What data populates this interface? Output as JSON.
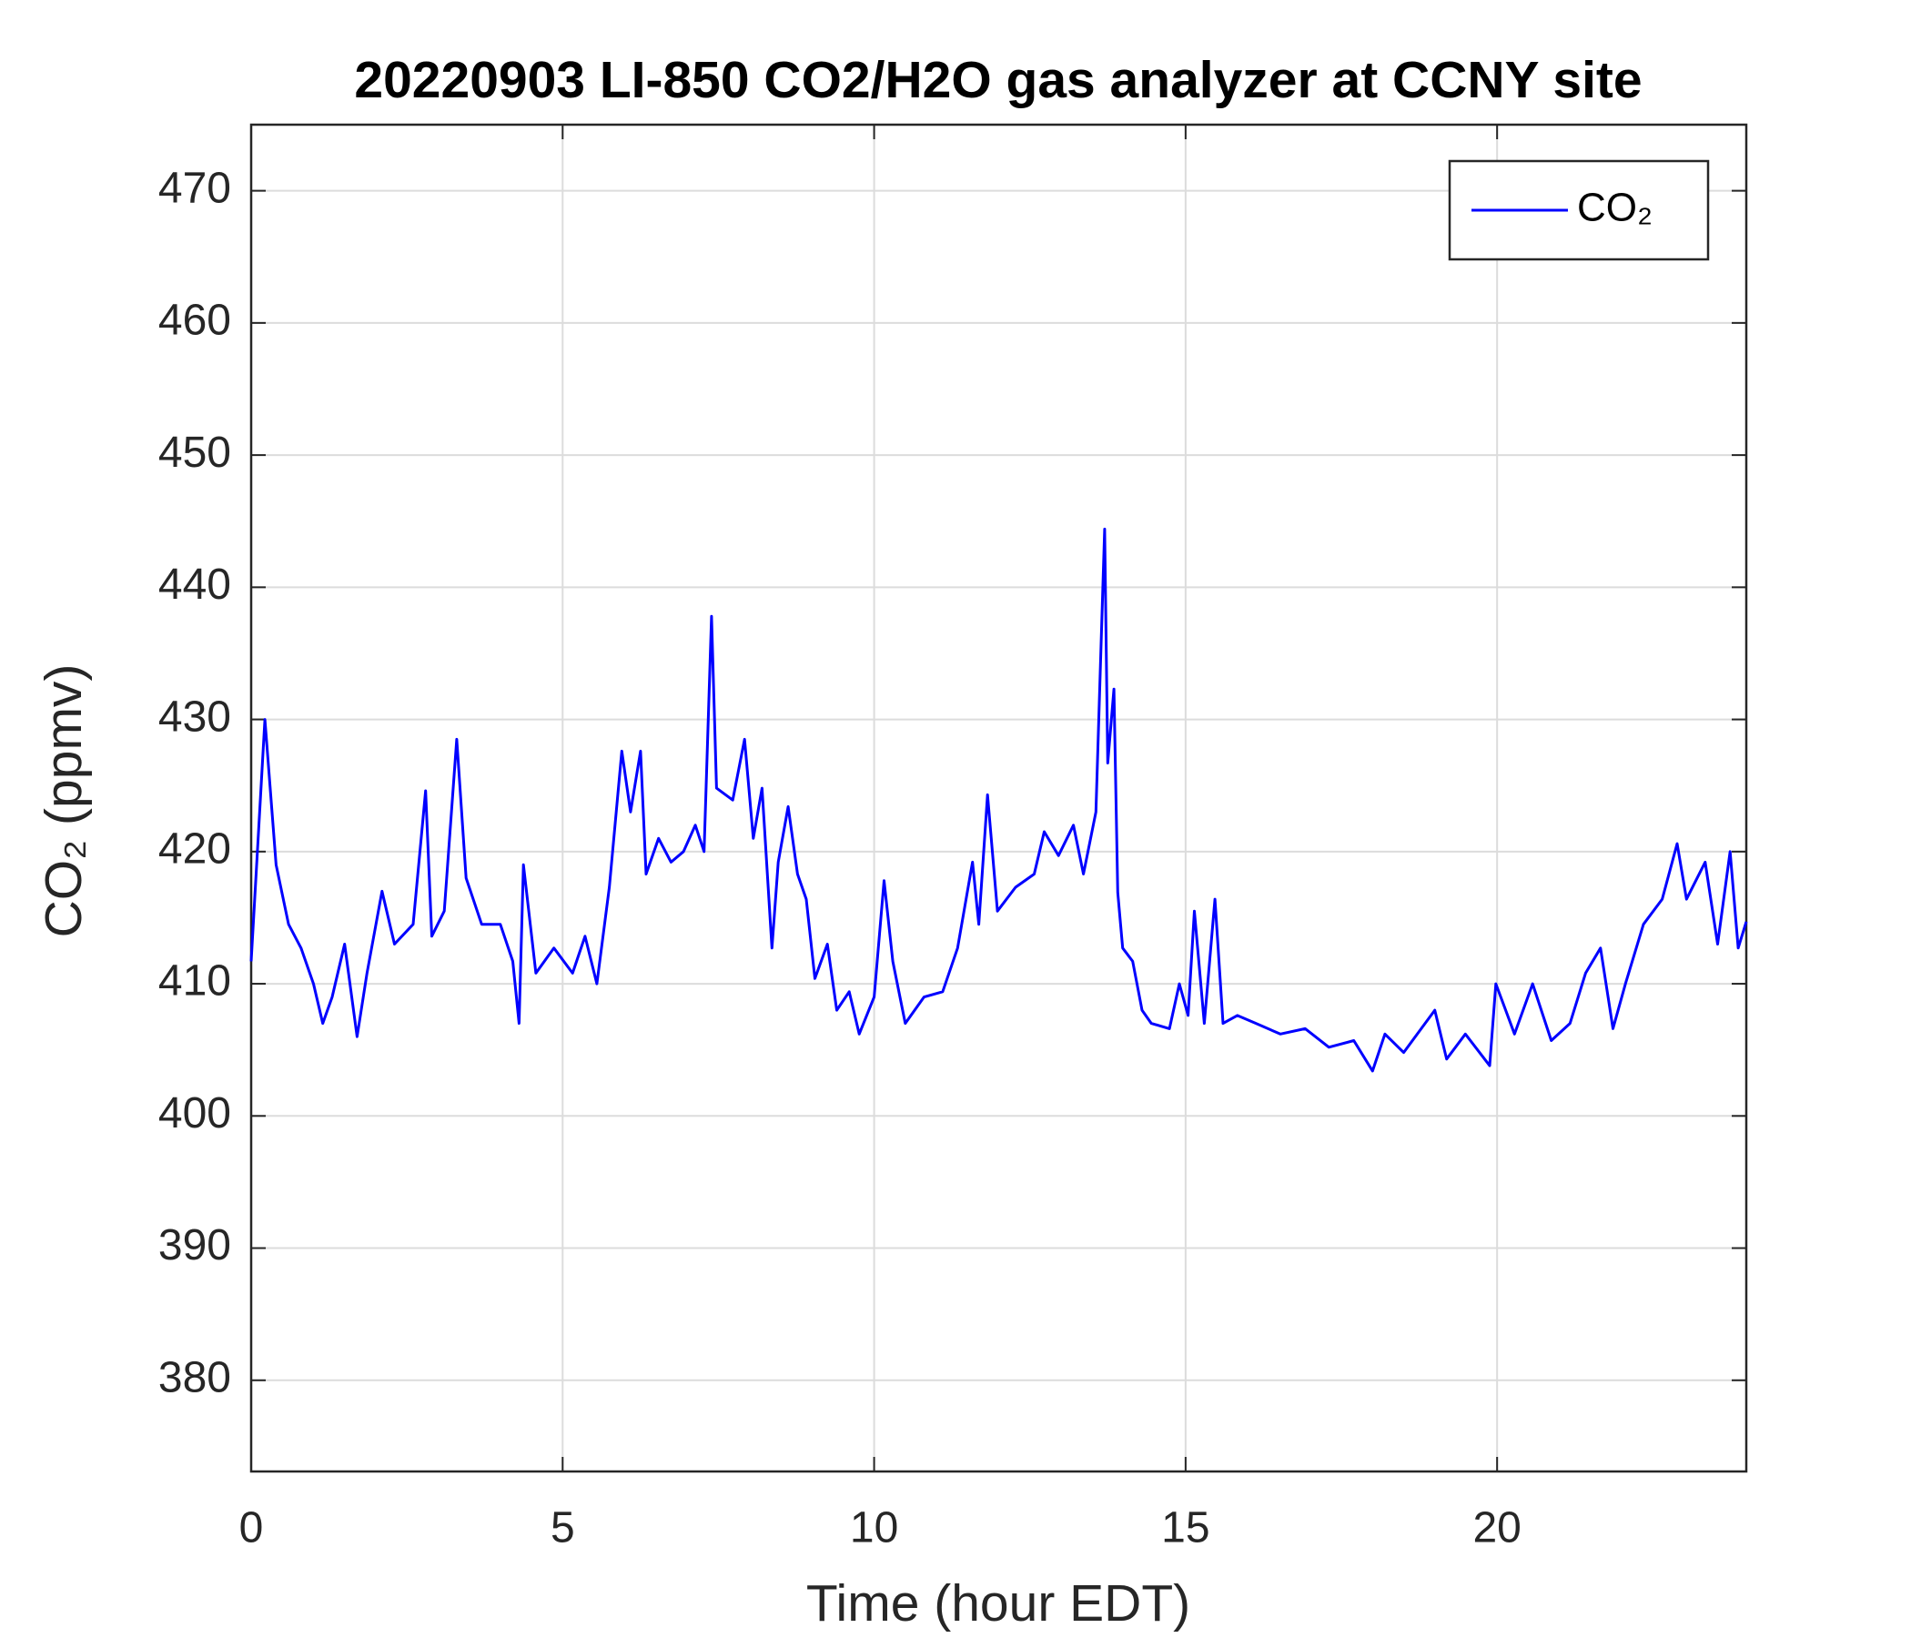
{
  "chart_data": {
    "type": "line",
    "title": "20220903 LI-850 CO2/H2O gas analyzer at CCNY site",
    "xlabel": "Time (hour EDT)",
    "ylabel": "CO₂ (ppmv)",
    "x": [
      0,
      0.22,
      0.4,
      0.6,
      0.8,
      1.0,
      1.15,
      1.3,
      1.5,
      1.7,
      1.86,
      2.1,
      2.3,
      2.6,
      2.8,
      2.9,
      3.1,
      3.3,
      3.45,
      3.7,
      4.0,
      4.2,
      4.3,
      4.37,
      4.57,
      4.86,
      5.16,
      5.36,
      5.55,
      5.75,
      5.95,
      6.09,
      6.25,
      6.34,
      6.54,
      6.74,
      6.94,
      7.13,
      7.27,
      7.39,
      7.47,
      7.73,
      7.92,
      8.06,
      8.2,
      8.36,
      8.46,
      8.62,
      8.77,
      8.91,
      9.05,
      9.25,
      9.4,
      9.6,
      9.76,
      10.0,
      10.16,
      10.3,
      10.5,
      10.8,
      11.1,
      11.34,
      11.58,
      11.68,
      11.82,
      11.98,
      12.27,
      12.57,
      12.73,
      12.96,
      13.2,
      13.36,
      13.56,
      13.7,
      13.75,
      13.85,
      13.91,
      13.99,
      14.15,
      14.3,
      14.45,
      14.74,
      14.9,
      15.04,
      15.14,
      15.3,
      15.47,
      15.6,
      15.83,
      16.13,
      16.52,
      16.92,
      17.3,
      17.7,
      18.0,
      18.2,
      18.5,
      19.0,
      19.19,
      19.49,
      19.88,
      19.98,
      20.28,
      20.57,
      20.87,
      21.17,
      21.42,
      21.66,
      21.86,
      22.06,
      22.35,
      22.65,
      22.89,
      23.04,
      23.34,
      23.54,
      23.74,
      23.87,
      24.0
    ],
    "series": [
      {
        "name": "CO₂",
        "color": "#0000ff",
        "values": [
          411.7,
          430,
          419,
          414.5,
          412.7,
          410,
          407,
          409,
          413,
          406,
          410.8,
          417,
          413,
          414.5,
          424.6,
          413.6,
          415.5,
          428.5,
          418,
          414.5,
          414.5,
          411.7,
          407,
          419,
          410.8,
          412.7,
          410.8,
          413.6,
          410,
          417.3,
          427.6,
          423,
          427.6,
          418.3,
          421,
          419.2,
          420,
          422,
          420,
          437.8,
          424.8,
          423.9,
          428.5,
          421,
          424.8,
          412.7,
          419.2,
          423.4,
          418.3,
          416.4,
          410.4,
          413,
          408,
          409.4,
          406.2,
          409,
          417.8,
          411.7,
          407,
          409,
          409.4,
          412.7,
          419.2,
          414.5,
          424.3,
          415.5,
          417.3,
          418.3,
          421.5,
          419.7,
          422,
          418.3,
          423,
          444.4,
          426.7,
          432.3,
          416.9,
          412.7,
          411.7,
          408,
          407,
          406.6,
          410,
          407.6,
          415.5,
          407,
          416.4,
          407,
          407.6,
          407,
          406.2,
          406.6,
          405.2,
          405.7,
          403.4,
          406.2,
          404.8,
          408,
          404.3,
          406.2,
          403.8,
          410,
          406.2,
          410,
          405.7,
          407,
          410.8,
          412.7,
          406.6,
          410,
          414.5,
          416.4,
          420.6,
          416.4,
          419.2,
          413,
          420,
          412.7,
          414.7
        ]
      }
    ],
    "xlim": [
      0,
      24
    ],
    "xticks": [
      0,
      5,
      10,
      15,
      20
    ],
    "ylim": [
      373.1,
      475
    ],
    "yticks": [
      380,
      390,
      400,
      410,
      420,
      430,
      440,
      450,
      460,
      470
    ],
    "grid": true,
    "legend": "upper right"
  }
}
